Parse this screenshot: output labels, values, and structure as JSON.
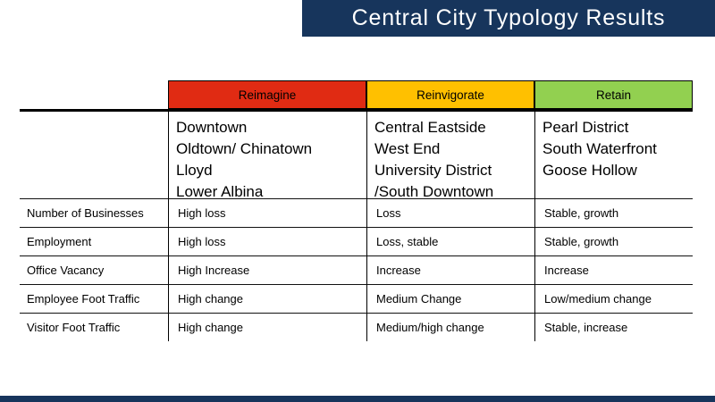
{
  "slide": {
    "title": "Central City Typology Results"
  },
  "colors": {
    "accent_navy": "#17355C",
    "reimagine_red": "#E02B13",
    "reinvigorate_yellow": "#FFC000",
    "retain_green": "#92D050"
  },
  "table": {
    "columns": [
      {
        "label": "Reimagine",
        "color": "#E02B13",
        "districts": [
          "Downtown",
          "Oldtown/ Chinatown",
          "Lloyd",
          "Lower Albina"
        ]
      },
      {
        "label": "Reinvigorate",
        "color": "#FFC000",
        "districts": [
          "Central Eastside",
          "West End",
          "University District /South Downtown"
        ]
      },
      {
        "label": "Retain",
        "color": "#92D050",
        "districts": [
          "Pearl District",
          "South Waterfront",
          "Goose Hollow"
        ]
      }
    ],
    "rows": [
      {
        "label": "Number of Businesses",
        "values": [
          "High loss",
          "Loss",
          "Stable, growth"
        ]
      },
      {
        "label": "Employment",
        "values": [
          "High loss",
          "Loss, stable",
          "Stable, growth"
        ]
      },
      {
        "label": "Office Vacancy",
        "values": [
          "High Increase",
          "Increase",
          "Increase"
        ]
      },
      {
        "label": "Employee Foot Traffic",
        "values": [
          "High change",
          "Medium Change",
          "Low/medium change"
        ]
      },
      {
        "label": "Visitor Foot Traffic",
        "values": [
          "High change",
          "Medium/high change",
          "Stable, increase"
        ]
      }
    ]
  }
}
